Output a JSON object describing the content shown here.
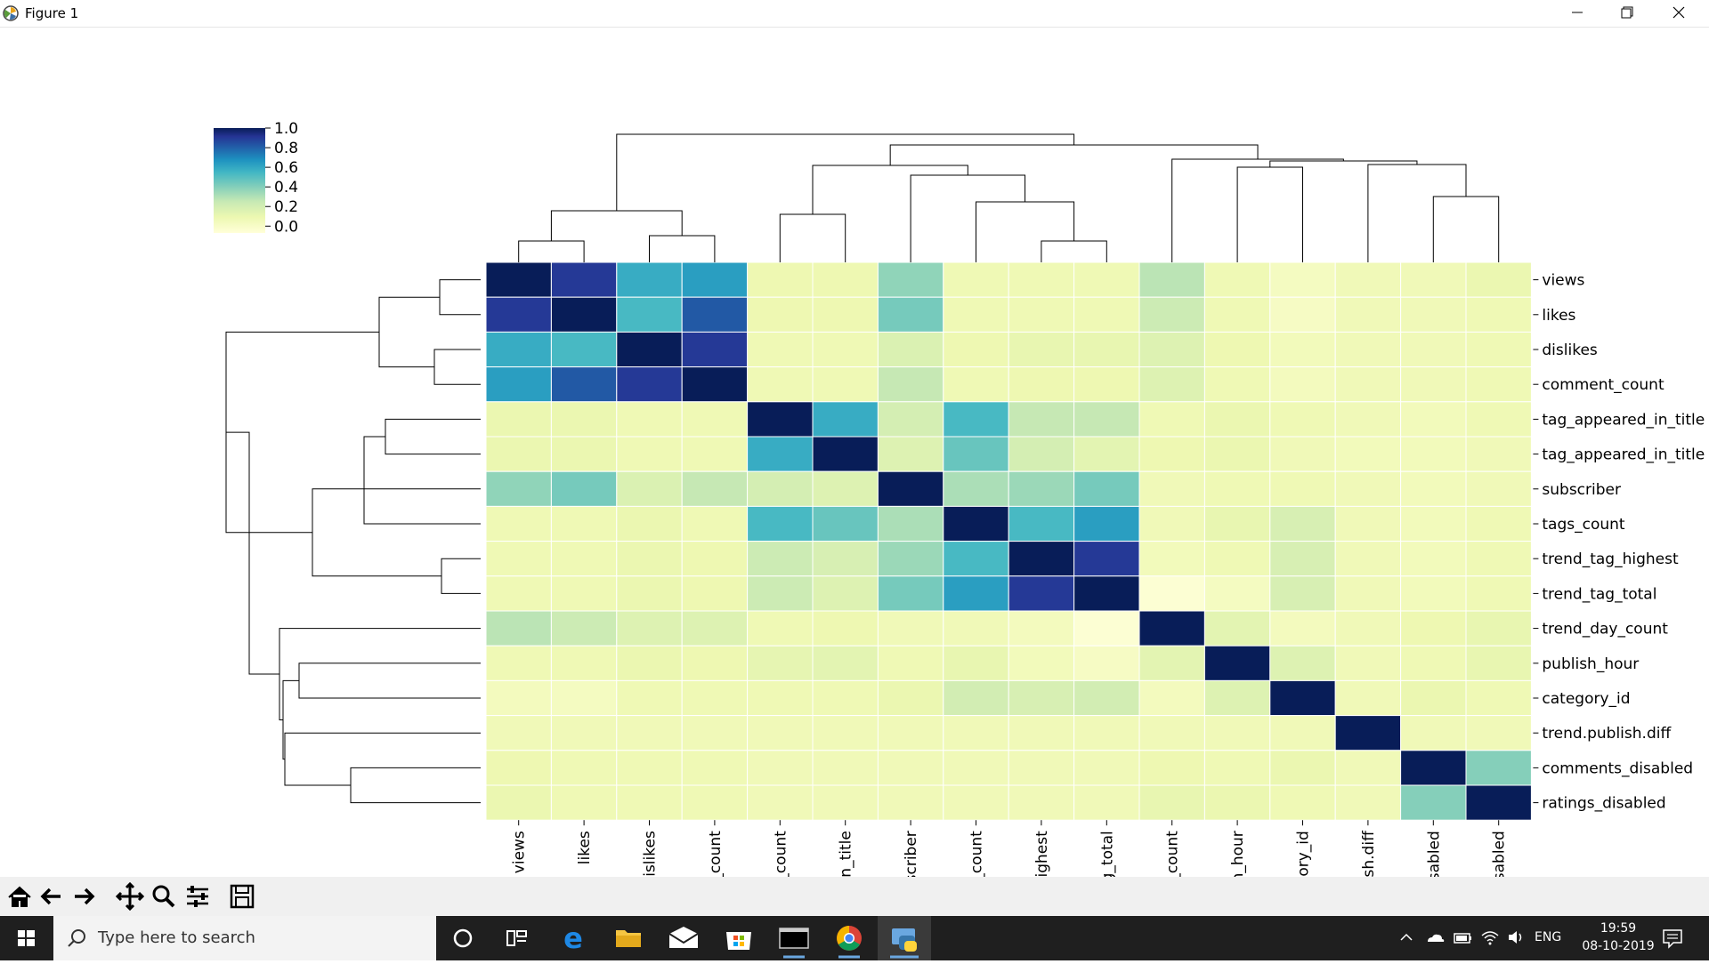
{
  "window": {
    "title": "Figure 1",
    "controls": [
      "minimize-icon",
      "restore-icon",
      "close-icon"
    ]
  },
  "toolbar": {
    "buttons": [
      "home-icon",
      "back-arrow-icon",
      "forward-arrow-icon",
      "pan-icon",
      "zoom-icon",
      "configure-subplots-icon",
      "save-icon"
    ]
  },
  "taskbar": {
    "search_placeholder": "Type here to search",
    "language": "ENG",
    "time": "19:59",
    "date": "08-10-2019",
    "apps": [
      "cortana-icon",
      "task-view-icon",
      "edge-icon",
      "file-explorer-icon",
      "mail-icon",
      "store-icon",
      "terminal-icon",
      "chrome-icon",
      "python-icon"
    ]
  },
  "chart_data": {
    "type": "heatmap",
    "title": "",
    "colormap": "YlGnBu",
    "colorbar": {
      "ticks": [
        "1.0",
        "0.8",
        "0.6",
        "0.4",
        "0.2",
        "0.0"
      ],
      "range": [
        -0.07,
        1.0
      ]
    },
    "rows": [
      "views",
      "likes",
      "dislikes",
      "comment_count",
      "tag_appeared_in_title",
      "tag_appeared_in_title",
      "subscriber",
      "tags_count",
      "trend_tag_highest",
      "trend_tag_total",
      "trend_day_count",
      "publish_hour",
      "category_id",
      "trend.publish.diff",
      "comments_disabled",
      "ratings_disabled"
    ],
    "columns": [
      "views",
      "likes",
      "dislikes",
      "ment_count",
      "title_count",
      "ed_in_title",
      "subscriber",
      "ags_count",
      "ag_highest",
      "l_tag_total",
      "day_count",
      "blish_hour",
      "ategory_id",
      "oublish.diff",
      "s_disabled",
      "s_disabled"
    ],
    "values": [
      [
        1.0,
        0.85,
        0.5,
        0.55,
        0.06,
        0.06,
        0.3,
        0.05,
        0.05,
        0.05,
        0.22,
        0.05,
        0.01,
        0.04,
        0.04,
        0.07
      ],
      [
        0.85,
        1.0,
        0.45,
        0.75,
        0.06,
        0.06,
        0.35,
        0.05,
        0.05,
        0.05,
        0.18,
        0.05,
        0.0,
        0.04,
        0.04,
        0.05
      ],
      [
        0.5,
        0.45,
        1.0,
        0.85,
        0.05,
        0.05,
        0.13,
        0.06,
        0.08,
        0.08,
        0.12,
        0.06,
        0.03,
        0.04,
        0.04,
        0.05
      ],
      [
        0.55,
        0.75,
        0.85,
        1.0,
        0.05,
        0.05,
        0.2,
        0.05,
        0.06,
        0.06,
        0.12,
        0.05,
        0.02,
        0.04,
        0.04,
        0.05
      ],
      [
        0.07,
        0.07,
        0.05,
        0.05,
        1.0,
        0.5,
        0.15,
        0.45,
        0.2,
        0.2,
        0.05,
        0.07,
        0.05,
        0.04,
        0.03,
        0.05
      ],
      [
        0.07,
        0.07,
        0.05,
        0.05,
        0.5,
        1.0,
        0.12,
        0.38,
        0.15,
        0.1,
        0.06,
        0.07,
        0.04,
        0.03,
        0.03,
        0.04
      ],
      [
        0.3,
        0.35,
        0.13,
        0.2,
        0.15,
        0.12,
        1.0,
        0.25,
        0.28,
        0.35,
        0.04,
        0.05,
        0.05,
        0.04,
        0.03,
        0.04
      ],
      [
        0.05,
        0.05,
        0.07,
        0.05,
        0.45,
        0.38,
        0.25,
        1.0,
        0.45,
        0.55,
        0.04,
        0.08,
        0.14,
        0.04,
        0.03,
        0.05
      ],
      [
        0.05,
        0.05,
        0.07,
        0.06,
        0.18,
        0.14,
        0.28,
        0.45,
        1.0,
        0.85,
        0.03,
        0.05,
        0.14,
        0.04,
        0.03,
        0.05
      ],
      [
        0.05,
        0.05,
        0.07,
        0.06,
        0.18,
        0.12,
        0.35,
        0.55,
        0.85,
        1.0,
        -0.05,
        0.01,
        0.14,
        0.04,
        0.03,
        0.05
      ],
      [
        0.22,
        0.18,
        0.12,
        0.12,
        0.05,
        0.06,
        0.04,
        0.04,
        0.02,
        -0.05,
        1.0,
        0.1,
        0.02,
        0.04,
        0.06,
        0.08
      ],
      [
        0.05,
        0.05,
        0.07,
        0.06,
        0.09,
        0.1,
        0.05,
        0.08,
        0.03,
        0.0,
        0.1,
        1.0,
        0.12,
        0.04,
        0.05,
        0.08
      ],
      [
        0.02,
        0.01,
        0.05,
        0.05,
        0.05,
        0.05,
        0.07,
        0.16,
        0.14,
        0.16,
        0.02,
        0.12,
        1.0,
        0.04,
        0.07,
        0.05
      ],
      [
        0.04,
        0.04,
        0.04,
        0.04,
        0.04,
        0.04,
        0.04,
        0.04,
        0.04,
        0.04,
        0.04,
        0.04,
        0.04,
        1.0,
        0.04,
        0.04
      ],
      [
        0.06,
        0.05,
        0.05,
        0.05,
        0.04,
        0.04,
        0.04,
        0.04,
        0.04,
        0.04,
        0.06,
        0.05,
        0.07,
        0.04,
        1.0,
        0.32
      ],
      [
        0.07,
        0.05,
        0.05,
        0.05,
        0.04,
        0.04,
        0.04,
        0.04,
        0.04,
        0.04,
        0.08,
        0.07,
        0.05,
        0.04,
        0.32,
        1.0
      ]
    ],
    "row_dendrogram": "left",
    "col_dendrogram": "top",
    "grid": false,
    "legend": "top-left"
  }
}
